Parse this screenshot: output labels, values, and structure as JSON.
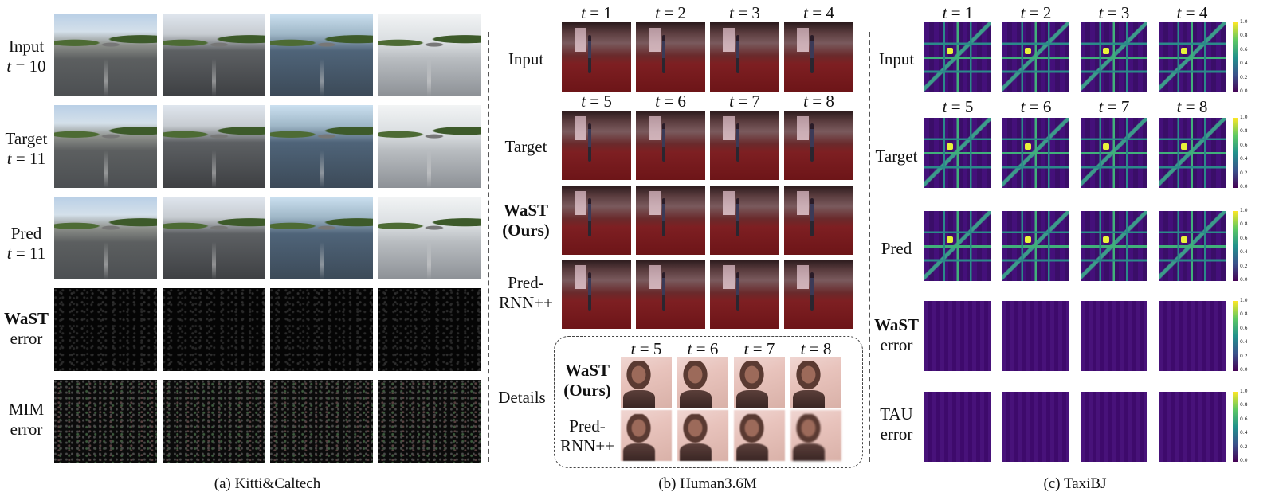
{
  "panel_a": {
    "rows": [
      {
        "line1": "Input",
        "line2_var": "t",
        "line2_val": " = 10"
      },
      {
        "line1": "Target",
        "line2_var": "t",
        "line2_val": " = 11"
      },
      {
        "line1": "Pred",
        "line2_var": "t",
        "line2_val": " = 11"
      },
      {
        "line1_bold": "WaST",
        "line2": "error"
      },
      {
        "line1": "MIM",
        "line2": "error"
      }
    ],
    "caption": "(a) Kitti&Caltech"
  },
  "panel_b": {
    "time_labels_top": [
      "1",
      "2",
      "3",
      "4"
    ],
    "time_labels_mid": [
      "5",
      "6",
      "7",
      "8"
    ],
    "time_labels_details": [
      "5",
      "6",
      "7",
      "8"
    ],
    "time_var": "t",
    "row_input": "Input",
    "row_target": "Target",
    "row_wast_1": "WaST",
    "row_wast_2": "(Ours)",
    "row_pred_1": "Pred-",
    "row_pred_2": "RNN++",
    "row_details": "Details",
    "details_wast_1": "WaST",
    "details_wast_2": "(Ours)",
    "details_pred_1": "Pred-",
    "details_pred_2": "RNN++",
    "caption": "(b) Human3.6M"
  },
  "panel_c": {
    "time_labels_top": [
      "1",
      "2",
      "3",
      "4"
    ],
    "time_labels_mid": [
      "5",
      "6",
      "7",
      "8"
    ],
    "time_var": "t",
    "row_input": "Input",
    "row_target": "Target",
    "row_pred": "Pred",
    "row_wast_1": "WaST",
    "row_wast_2": "error",
    "row_tau_1": "TAU",
    "row_tau_2": "error",
    "colorbar_ticks": [
      "1.0",
      "0.8",
      "0.6",
      "0.4",
      "0.2",
      "0.0"
    ],
    "caption": "(c) TaxiBJ"
  }
}
